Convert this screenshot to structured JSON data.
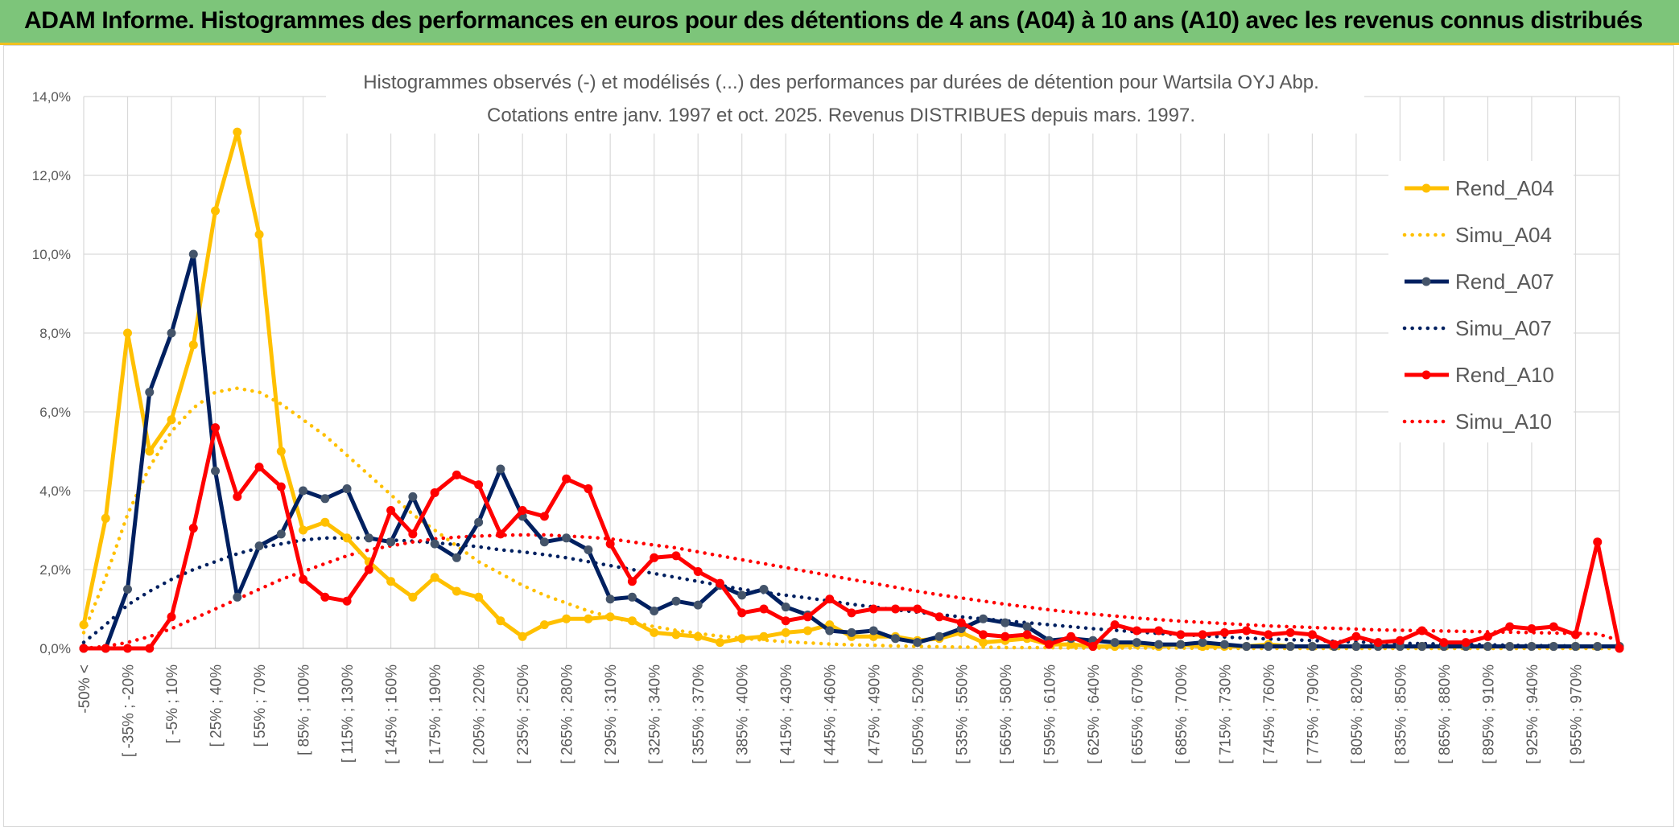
{
  "banner": {
    "title": "ADAM Informe. Histogrammes des performances en euros pour des détentions de 4 ans (A04) à 10 ans (A10) avec les revenus connus distribués"
  },
  "colors": {
    "banner_bg": "#7dc57a",
    "A04": "#ffc000",
    "A07": "#002060",
    "A10": "#ff0000"
  },
  "chart_data": {
    "type": "line",
    "title_line1": "Histogrammes observés (-) et modélisés (...) des performances par durées de détention pour Wartsila OYJ Abp.",
    "title_line2": "Cotations entre janv. 1997 et oct. 2025. Revenus DISTRIBUES depuis mars. 1997.",
    "ylim": [
      0,
      14
    ],
    "yticks": [
      "0,0%",
      "2,0%",
      "4,0%",
      "6,0%",
      "8,0%",
      "10,0%",
      "12,0%",
      "14,0%"
    ],
    "category_labels": [
      "-50% <",
      "[ -35% ; -20%",
      "[ -5% ; 10%",
      "[ 25% ; 40%",
      "[ 55% ; 70%",
      "[ 85% ; 100%",
      "[ 115% ; 130%",
      "[ 145% ; 160%",
      "[ 175% ; 190%",
      "[ 205% ; 220%",
      "[ 235% ; 250%",
      "[ 265% ; 280%",
      "[ 295% ; 310%",
      "[ 325% ; 340%",
      "[ 355% ; 370%",
      "[ 385% ; 400%",
      "[ 415% ; 430%",
      "[ 445% ; 460%",
      "[ 475% ; 490%",
      "[ 505% ; 520%",
      "[ 535% ; 550%",
      "[ 565% ; 580%",
      "[ 595% ; 610%",
      "[ 625% ; 640%",
      "[ 655% ; 670%",
      "[ 685% ; 700%",
      "[ 715% ; 730%",
      "[ 745% ; 760%",
      "[ 775% ; 790%",
      "[ 805% ; 820%",
      "[ 835% ; 850%",
      "[ 865% ; 880%",
      "[ 895% ; 910%",
      "[ 925% ; 940%",
      "[ 955% ; 970%"
    ],
    "n_points": 71,
    "series": [
      {
        "name": "Rend_A04",
        "style": "solid",
        "color": "#ffc000",
        "values": [
          0.6,
          3.3,
          8.0,
          5.0,
          5.8,
          7.7,
          11.1,
          13.1,
          10.5,
          5.0,
          3.0,
          3.2,
          2.8,
          2.2,
          1.7,
          1.3,
          1.8,
          1.45,
          1.3,
          0.7,
          0.3,
          0.6,
          0.75,
          0.75,
          0.8,
          0.7,
          0.4,
          0.35,
          0.3,
          0.15,
          0.25,
          0.3,
          0.4,
          0.45,
          0.6,
          0.3,
          0.3,
          0.3,
          0.2,
          0.25,
          0.4,
          0.15,
          0.2,
          0.25,
          0.1,
          0.1,
          0.05,
          0.05,
          0.1,
          0.05,
          0.1,
          0.05,
          0.05,
          0.05,
          0.1,
          0.05,
          0.05,
          0.05,
          0.05,
          0.05,
          0.05,
          0.05,
          0.05,
          0.05,
          0.05,
          0.05,
          0.05,
          0.05,
          0.05,
          0.05,
          0.05
        ]
      },
      {
        "name": "Simu_A04",
        "style": "dotted",
        "color": "#ffc000",
        "values": [
          0.4,
          1.8,
          3.4,
          4.6,
          5.5,
          6.1,
          6.5,
          6.6,
          6.5,
          6.2,
          5.8,
          5.4,
          4.9,
          4.4,
          3.9,
          3.4,
          3.0,
          2.6,
          2.2,
          1.9,
          1.6,
          1.35,
          1.15,
          0.95,
          0.8,
          0.67,
          0.55,
          0.46,
          0.38,
          0.31,
          0.26,
          0.21,
          0.17,
          0.14,
          0.11,
          0.09,
          0.08,
          0.06,
          0.05,
          0.04,
          0.03,
          0.03,
          0.02,
          0.02,
          0.02,
          0.01,
          0.01,
          0.01,
          0.01,
          0.01,
          0.01,
          0.0,
          0.0,
          0.0,
          0.0,
          0.0,
          0.0,
          0.0,
          0.0,
          0.0,
          0.0,
          0.0,
          0.0,
          0.0,
          0.0,
          0.0,
          0.0,
          0.0,
          0.0,
          0.0,
          0.0
        ]
      },
      {
        "name": "Rend_A07",
        "style": "solid",
        "color": "#002060",
        "values": [
          0.0,
          0.0,
          1.5,
          6.5,
          8.0,
          10.0,
          4.5,
          1.3,
          2.6,
          2.9,
          4.0,
          3.8,
          4.05,
          2.8,
          2.7,
          3.85,
          2.65,
          2.3,
          3.2,
          4.55,
          3.35,
          2.7,
          2.8,
          2.5,
          1.25,
          1.3,
          0.95,
          1.2,
          1.1,
          1.6,
          1.35,
          1.5,
          1.05,
          0.85,
          0.45,
          0.4,
          0.45,
          0.25,
          0.15,
          0.3,
          0.5,
          0.75,
          0.65,
          0.55,
          0.2,
          0.25,
          0.2,
          0.15,
          0.15,
          0.1,
          0.1,
          0.15,
          0.1,
          0.05,
          0.05,
          0.05,
          0.05,
          0.05,
          0.05,
          0.05,
          0.05,
          0.05,
          0.05,
          0.05,
          0.05,
          0.05,
          0.05,
          0.05,
          0.05,
          0.05,
          0.05
        ]
      },
      {
        "name": "Simu_A07",
        "style": "dotted",
        "color": "#002060",
        "values": [
          0.15,
          0.6,
          1.1,
          1.45,
          1.75,
          2.0,
          2.2,
          2.4,
          2.55,
          2.65,
          2.75,
          2.8,
          2.8,
          2.8,
          2.75,
          2.72,
          2.68,
          2.63,
          2.58,
          2.5,
          2.45,
          2.38,
          2.3,
          2.2,
          2.1,
          2.0,
          1.9,
          1.8,
          1.7,
          1.6,
          1.5,
          1.42,
          1.35,
          1.28,
          1.2,
          1.12,
          1.05,
          0.98,
          0.92,
          0.86,
          0.8,
          0.75,
          0.7,
          0.65,
          0.6,
          0.55,
          0.5,
          0.46,
          0.42,
          0.38,
          0.35,
          0.32,
          0.29,
          0.26,
          0.24,
          0.22,
          0.2,
          0.18,
          0.16,
          0.15,
          0.13,
          0.12,
          0.11,
          0.1,
          0.09,
          0.08,
          0.07,
          0.07,
          0.06,
          0.05,
          0.05
        ]
      },
      {
        "name": "Rend_A10",
        "style": "solid",
        "color": "#ff0000",
        "values": [
          0.0,
          0.0,
          0.0,
          0.0,
          0.8,
          3.05,
          5.6,
          3.85,
          4.6,
          4.1,
          1.75,
          1.3,
          1.2,
          2.0,
          3.5,
          2.9,
          3.95,
          4.4,
          4.15,
          2.9,
          3.5,
          3.35,
          4.3,
          4.05,
          2.65,
          1.7,
          2.3,
          2.35,
          1.95,
          1.65,
          0.9,
          1.0,
          0.7,
          0.8,
          1.25,
          0.9,
          1.0,
          1.0,
          1.0,
          0.8,
          0.65,
          0.35,
          0.3,
          0.35,
          0.1,
          0.3,
          0.05,
          0.6,
          0.45,
          0.45,
          0.35,
          0.35,
          0.4,
          0.45,
          0.35,
          0.4,
          0.35,
          0.1,
          0.3,
          0.15,
          0.2,
          0.45,
          0.15,
          0.15,
          0.3,
          0.55,
          0.5,
          0.55,
          0.35,
          2.7,
          0.0
        ]
      },
      {
        "name": "Simu_A10",
        "style": "dotted",
        "color": "#ff0000",
        "values": [
          0.0,
          0.05,
          0.15,
          0.3,
          0.5,
          0.75,
          1.0,
          1.25,
          1.5,
          1.75,
          1.95,
          2.15,
          2.35,
          2.5,
          2.6,
          2.7,
          2.78,
          2.82,
          2.85,
          2.87,
          2.88,
          2.88,
          2.85,
          2.82,
          2.78,
          2.7,
          2.62,
          2.55,
          2.45,
          2.35,
          2.25,
          2.15,
          2.05,
          1.95,
          1.85,
          1.75,
          1.65,
          1.55,
          1.45,
          1.36,
          1.28,
          1.2,
          1.12,
          1.05,
          0.98,
          0.92,
          0.87,
          0.82,
          0.77,
          0.73,
          0.69,
          0.66,
          0.63,
          0.6,
          0.57,
          0.55,
          0.53,
          0.51,
          0.49,
          0.47,
          0.46,
          0.45,
          0.44,
          0.43,
          0.42,
          0.41,
          0.4,
          0.39,
          0.38,
          0.37,
          0.2
        ]
      }
    ],
    "legend": [
      "Rend_A04",
      "Simu_A04",
      "Rend_A07",
      "Simu_A07",
      "Rend_A10",
      "Simu_A10"
    ],
    "legend_position": "right"
  }
}
